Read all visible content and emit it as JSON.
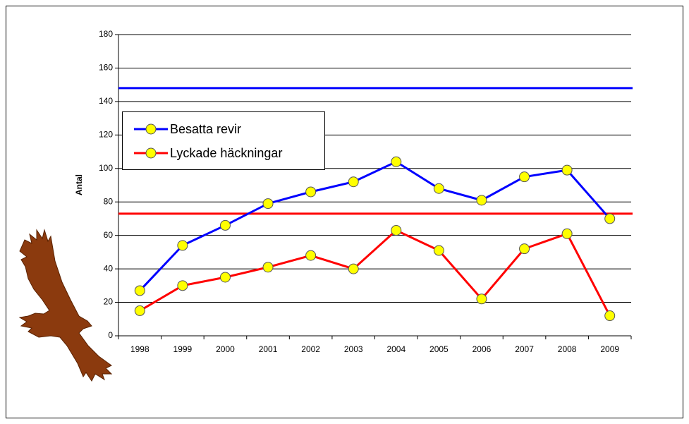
{
  "chart_data": {
    "type": "line",
    "y_label": "Antal",
    "categories": [
      "1998",
      "1999",
      "2000",
      "2001",
      "2002",
      "2003",
      "2004",
      "2005",
      "2006",
      "2007",
      "2008",
      "2009"
    ],
    "series": [
      {
        "name": "Besatta revir",
        "color": "#0000ff",
        "marker_color": "#ffff00",
        "values": [
          27,
          54,
          66,
          79,
          86,
          92,
          104,
          88,
          81,
          95,
          99,
          70
        ]
      },
      {
        "name": "Lyckade häckningar",
        "color": "#ff0000",
        "marker_color": "#ffff00",
        "values": [
          15,
          30,
          35,
          41,
          48,
          40,
          63,
          51,
          22,
          52,
          61,
          12
        ]
      }
    ],
    "reference_lines": [
      {
        "value": 148,
        "color": "#0000ff"
      },
      {
        "value": 73,
        "color": "#ff0000"
      }
    ],
    "ylim": [
      0,
      180
    ],
    "yticks": [
      0,
      20,
      40,
      60,
      80,
      100,
      120,
      140,
      160,
      180
    ],
    "grid": true,
    "legend": "upper left"
  }
}
